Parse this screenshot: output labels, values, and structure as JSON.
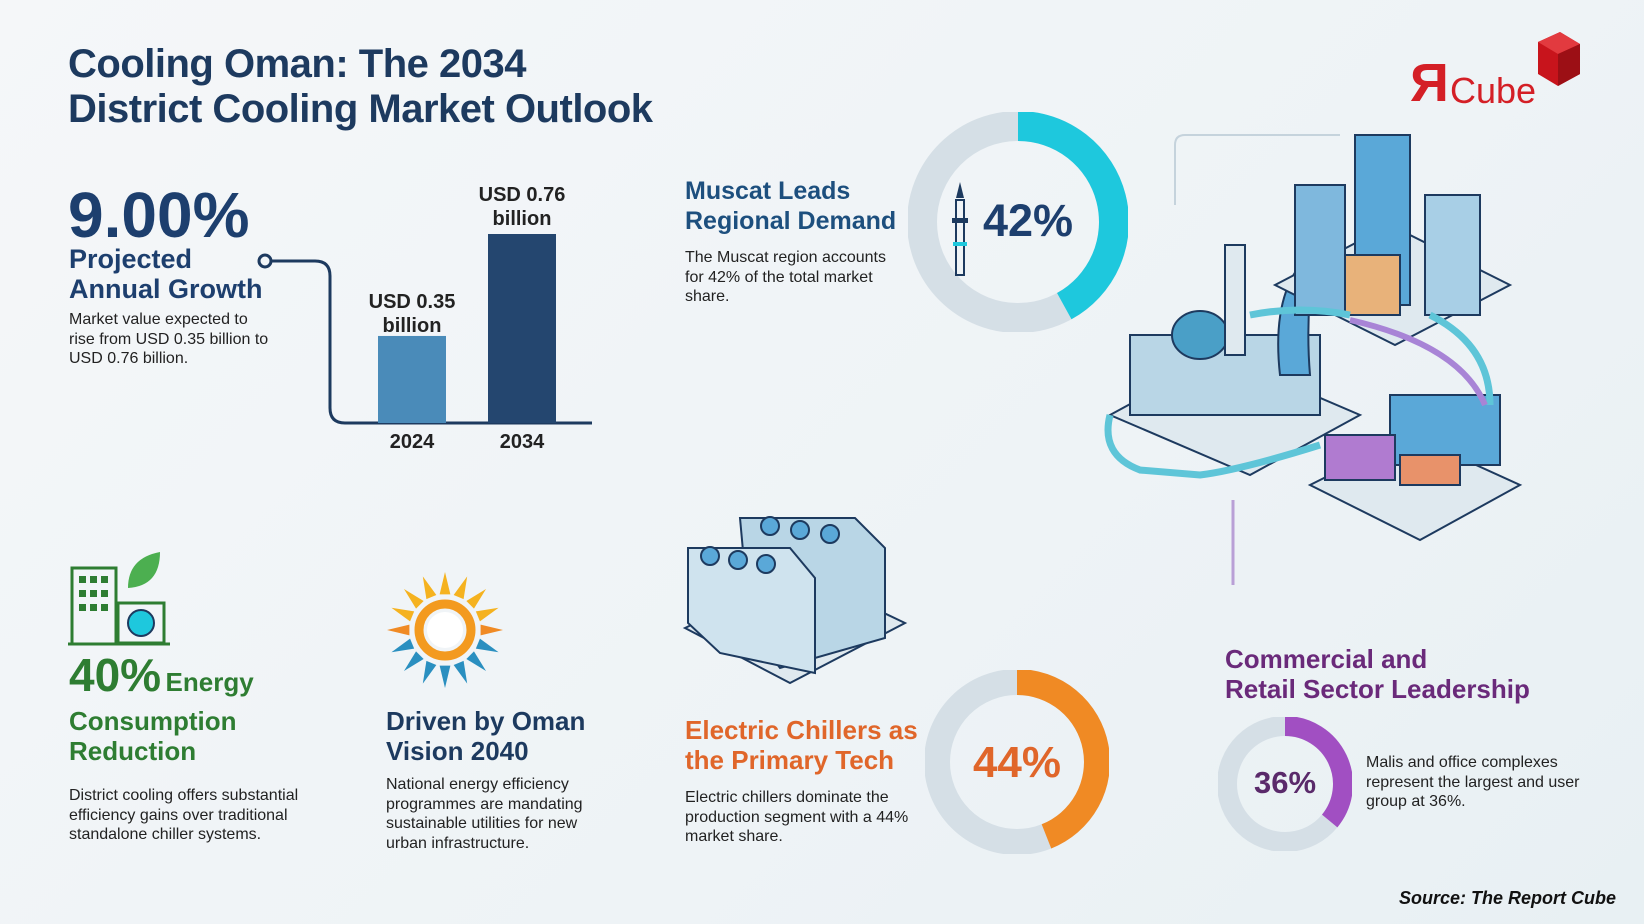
{
  "title": {
    "line1": "Cooling Oman: The 2034",
    "line2": "District Cooling Market Outlook"
  },
  "logo": {
    "text": "Cube",
    "mark": "Я",
    "brand_color": "#d41f26"
  },
  "growth": {
    "value": "9.00%",
    "label_line1": "Projected",
    "label_line2": "Annual Growth",
    "desc": "Market value expected to rise from USD 0.35 billion to USD 0.76 billion."
  },
  "chart_data": [
    {
      "type": "bar",
      "categories": [
        "2024",
        "2034"
      ],
      "values": [
        0.35,
        0.76
      ],
      "data_labels": [
        "USD 0.35 billion",
        "USD 0.76 billion"
      ],
      "colors": [
        "#4a8bb9",
        "#24466f"
      ]
    },
    {
      "type": "pie",
      "values": [
        42,
        58
      ],
      "label": "42%",
      "color": "#1ec8dd"
    },
    {
      "type": "pie",
      "values": [
        44,
        56
      ],
      "label": "44%",
      "color": "#f08a24"
    },
    {
      "type": "pie",
      "values": [
        36,
        64
      ],
      "label": "36%",
      "color": "#a14fc2"
    }
  ],
  "bars": [
    {
      "year": "2024",
      "label": "USD 0.35\nbillion"
    },
    {
      "year": "2034",
      "label": "USD 0.76\nbillion"
    }
  ],
  "muscat": {
    "title1": "Muscat Leads",
    "title2": "Regional Demand",
    "desc": "The Muscat region accounts for 42% of the total market share.",
    "pct": "42%"
  },
  "energy": {
    "pct": "40%",
    "word": "Energy",
    "line2": "Consumption",
    "line3": "Reduction",
    "desc": "District cooling offers substantial efficiency gains over traditional standalone chiller systems."
  },
  "vision": {
    "title1": "Driven by Oman",
    "title2": "Vision 2040",
    "desc": "National energy efficiency programmes are mandating sustainable utilities for new urban infrastructure."
  },
  "chillers": {
    "title1": "Electric Chillers as",
    "title2": "the Primary Tech",
    "desc": "Electric chillers dominate the production segment with a 44% market share.",
    "pct": "44%"
  },
  "commercial": {
    "title1": "Commercial and",
    "title2": "Retail Sector Leadership",
    "desc": "Malis and office complexes represent the largest and user group at 36%.",
    "pct": "36%"
  },
  "source": "Source: The Report Cube"
}
